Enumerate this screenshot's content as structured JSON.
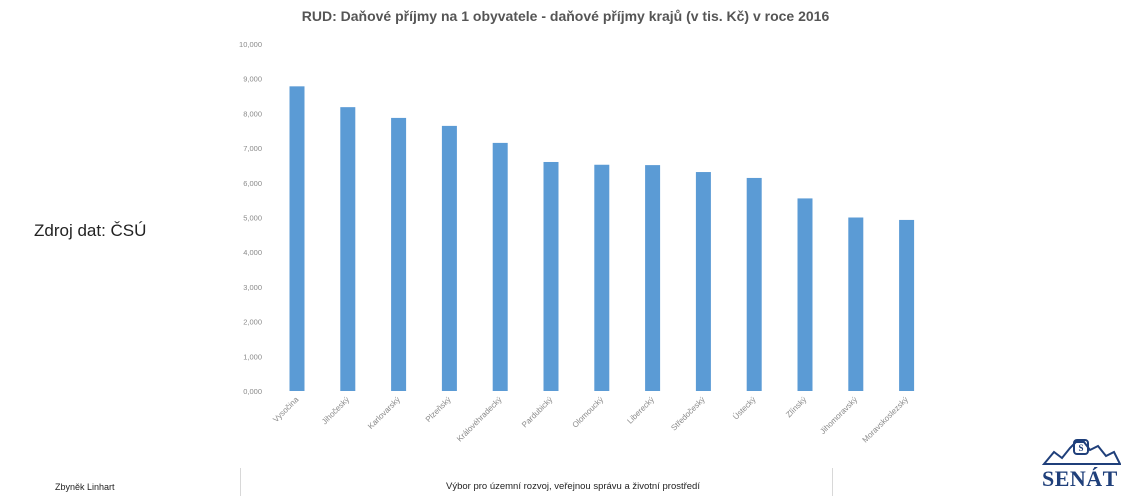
{
  "header": {
    "title": "RUD: Daňové příjmy na 1 obyvatele - daňové příjmy krajů (v tis. Kč) v roce 2016"
  },
  "source": {
    "label": "Zdroj dat: ČSÚ"
  },
  "footer": {
    "author": "Zbyněk Linhart",
    "committee": "Výbor pro územní rozvoj, veřejnou správu a životní prostředí",
    "logo_text": "SENÁT"
  },
  "colors": {
    "bar": "#5b9bd5",
    "axis_text": "#8a8a8a",
    "logo": "#1f3f7a"
  },
  "chart_data": {
    "type": "bar",
    "title": "RUD: Daňové příjmy na 1 obyvatele - daňové příjmy krajů (v tis. Kč) v roce 2016",
    "xlabel": "",
    "ylabel": "",
    "ylim": [
      0,
      10
    ],
    "y_ticks": [
      "0,000",
      "1,000",
      "2,000",
      "3,000",
      "4,000",
      "5,000",
      "6,000",
      "7,000",
      "8,000",
      "9,000",
      "10,000"
    ],
    "grid": false,
    "categories": [
      "Vysočina",
      "Jihočeský",
      "Karlovarský",
      "Plzeňský",
      "Královéhradecký",
      "Pardubický",
      "Olomoucký",
      "Liberecký",
      "Středočeský",
      "Ústecký",
      "Zlínský",
      "Jihomoravský",
      "Moravskoslezský"
    ],
    "values": [
      8.78,
      8.18,
      7.87,
      7.64,
      7.15,
      6.6,
      6.52,
      6.51,
      6.31,
      6.14,
      5.55,
      5.0,
      4.93
    ]
  }
}
